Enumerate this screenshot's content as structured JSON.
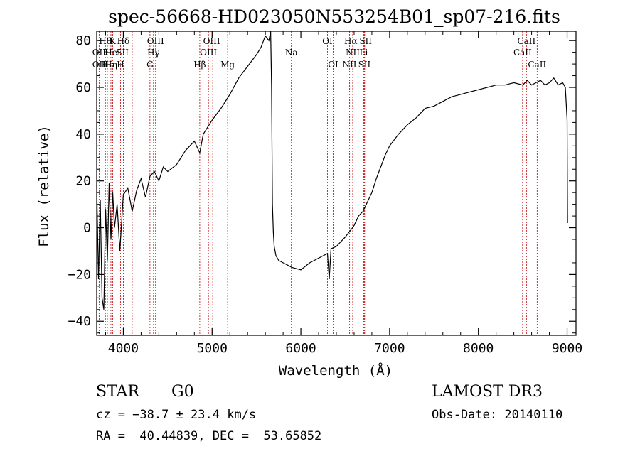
{
  "chart_data": {
    "type": "line",
    "title": "spec-56668-HD023050N553254B01_sp07-216.fits",
    "xlabel": "Wavelength (Å)",
    "ylabel": "Flux (relative)",
    "xlim": [
      3700,
      9100
    ],
    "ylim": [
      -46,
      84
    ],
    "xticks": [
      4000,
      5000,
      6000,
      7000,
      8000,
      9000
    ],
    "xtick_labels": [
      "4000",
      "5000",
      "6000",
      "7000",
      "8000",
      "9000"
    ],
    "yticks": [
      -40,
      -20,
      0,
      20,
      40,
      60,
      80
    ],
    "ytick_labels": [
      "−40",
      "−20",
      "0",
      "20",
      "40",
      "60",
      "80"
    ],
    "grid": false,
    "spectrum": {
      "name": "",
      "x": [
        3700,
        3720,
        3740,
        3760,
        3780,
        3800,
        3820,
        3840,
        3860,
        3880,
        3900,
        3930,
        3960,
        4000,
        4050,
        4100,
        4150,
        4200,
        4250,
        4300,
        4350,
        4400,
        4450,
        4500,
        4600,
        4700,
        4800,
        4861,
        4900,
        5000,
        5100,
        5200,
        5300,
        5400,
        5500,
        5550,
        5600,
        5640,
        5660,
        5670,
        5680,
        5690,
        5700,
        5720,
        5750,
        5800,
        5850,
        5900,
        6000,
        6100,
        6200,
        6300,
        6320,
        6340,
        6400,
        6500,
        6563,
        6600,
        6650,
        6700,
        6750,
        6800,
        6850,
        6900,
        6950,
        7000,
        7100,
        7200,
        7300,
        7400,
        7500,
        7600,
        7700,
        7800,
        7900,
        8000,
        8100,
        8200,
        8300,
        8400,
        8500,
        8550,
        8600,
        8650,
        8700,
        8750,
        8800,
        8850,
        8900,
        8950,
        8980,
        9000,
        9005
      ],
      "y": [
        18,
        -22,
        12,
        -30,
        -35,
        8,
        -14,
        19,
        -5,
        15,
        0,
        10,
        -10,
        14,
        17,
        7,
        16,
        21,
        13,
        22,
        24,
        20,
        26,
        24,
        27,
        33,
        37,
        32,
        40,
        46,
        51,
        57,
        64,
        69,
        74,
        77,
        82,
        80,
        84,
        60,
        10,
        -2,
        -8,
        -12,
        -14,
        -15,
        -16,
        -17,
        -18,
        -15,
        -13,
        -11,
        -22,
        -9,
        -8,
        -4,
        -1,
        1,
        5,
        7,
        11,
        15,
        21,
        26,
        31,
        35,
        40,
        44,
        47,
        51,
        52,
        54,
        56,
        57,
        58,
        59,
        60,
        61,
        61,
        62,
        61,
        63,
        61,
        62,
        63,
        61,
        62,
        64,
        61,
        62,
        60,
        46,
        2
      ]
    },
    "lines": [
      {
        "label": "Hθ",
        "x": 3798,
        "row": 1
      },
      {
        "label": "OII",
        "x": 3727,
        "row": 2
      },
      {
        "label": "OII",
        "x": 3727,
        "row": 3
      },
      {
        "label": "Hε",
        "x": 3820,
        "row": 3
      },
      {
        "label": "K",
        "x": 3880,
        "row": 1
      },
      {
        "label": "HeI",
        "x": 3880,
        "row": 2
      },
      {
        "label": "Hη",
        "x": 3860,
        "row": 3
      },
      {
        "label": "Hδ",
        "x": 4000,
        "row": 1
      },
      {
        "label": "SII",
        "x": 3990,
        "row": 2
      },
      {
        "label": "H",
        "x": 3968,
        "row": 3
      },
      {
        "label": "OIII",
        "x": 4363,
        "row": 1
      },
      {
        "label": "Hγ",
        "x": 4340,
        "row": 2
      },
      {
        "label": "G",
        "x": 4300,
        "row": 3
      },
      {
        "label": "OIII",
        "x": 4995,
        "row": 1
      },
      {
        "label": "OIII",
        "x": 4959,
        "row": 2
      },
      {
        "label": "Hβ",
        "x": 4861,
        "row": 3
      },
      {
        "label": "Mg",
        "x": 5175,
        "row": 3
      },
      {
        "label": "Na",
        "x": 5893,
        "row": 2
      },
      {
        "label": "OI",
        "x": 6300,
        "row": 1
      },
      {
        "label": "OI",
        "x": 6364,
        "row": 3
      },
      {
        "label": "Hα",
        "x": 6563,
        "row": 1
      },
      {
        "label": "SII",
        "x": 6730,
        "row": 1
      },
      {
        "label": "NII",
        "x": 6584,
        "row": 2
      },
      {
        "label": "Li",
        "x": 6708,
        "row": 2
      },
      {
        "label": "NII",
        "x": 6548,
        "row": 3
      },
      {
        "label": "SII",
        "x": 6716,
        "row": 3
      },
      {
        "label": "CaII",
        "x": 8542,
        "row": 1
      },
      {
        "label": "CaII",
        "x": 8498,
        "row": 2
      },
      {
        "label": "CaII",
        "x": 8662,
        "row": 3
      }
    ],
    "line_marker_x": [
      3727,
      3798,
      3820,
      3860,
      3880,
      3968,
      4000,
      4100,
      4300,
      4340,
      4363,
      4861,
      4959,
      5007,
      5175,
      5893,
      6300,
      6364,
      6548,
      6563,
      6584,
      6708,
      6716,
      6730,
      8498,
      8542,
      8662
    ],
    "colors": {
      "spectrum": "#000000",
      "line_marker": "#c00000",
      "axes": "#000000"
    }
  },
  "info": {
    "class_label": "STAR",
    "subclass": "G0",
    "survey": "LAMOST DR3",
    "cz": "cz = −38.7 ± 23.4 km/s",
    "obs_date": "Obs-Date: 20140110",
    "coords": "RA =  40.44839, DEC =  53.65852"
  }
}
